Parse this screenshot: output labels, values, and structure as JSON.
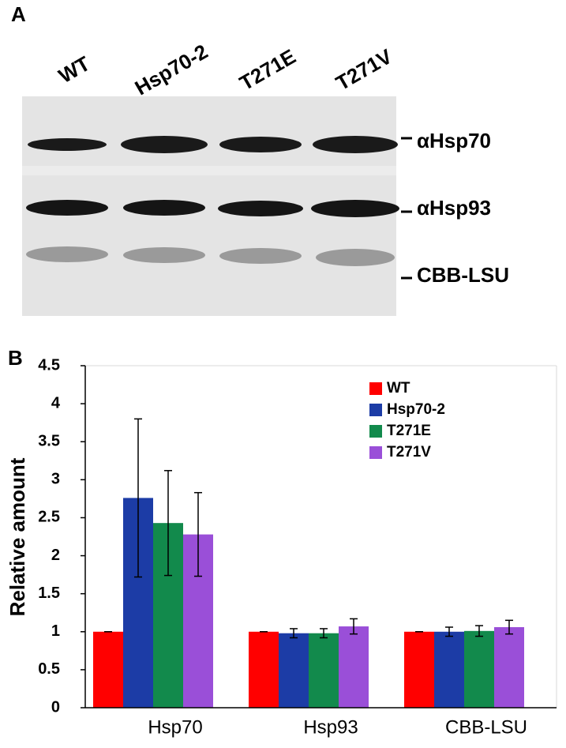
{
  "panel_a": {
    "label": "A",
    "lanes": [
      "WT",
      "Hsp70-2",
      "T271E",
      "T271V"
    ],
    "bands": [
      "αHsp70",
      "αHsp93",
      "CBB-LSU"
    ]
  },
  "chart_data": {
    "type": "bar",
    "panel_label": "B",
    "ylabel": "Relative amount",
    "categories": [
      "Hsp70",
      "Hsp93",
      "CBB-LSU"
    ],
    "series": [
      {
        "name": "WT",
        "color": "#ff0000",
        "values": [
          1,
          1,
          1
        ],
        "errors": [
          0,
          0,
          0
        ]
      },
      {
        "name": "Hsp70-2",
        "color": "#1c3ca6",
        "values": [
          2.76,
          0.98,
          1.0
        ],
        "errors": [
          1.04,
          0.06,
          0.06
        ]
      },
      {
        "name": "T271E",
        "color": "#128a4c",
        "values": [
          2.43,
          0.98,
          1.01
        ],
        "errors": [
          0.69,
          0.06,
          0.07
        ]
      },
      {
        "name": "T271V",
        "color": "#9a4fd8",
        "values": [
          2.28,
          1.07,
          1.06
        ],
        "errors": [
          0.55,
          0.1,
          0.09
        ]
      }
    ],
    "ylim": [
      0,
      4.5
    ],
    "yticks": [
      0,
      0.5,
      1,
      1.5,
      2,
      2.5,
      3,
      3.5,
      4,
      4.5
    ]
  }
}
